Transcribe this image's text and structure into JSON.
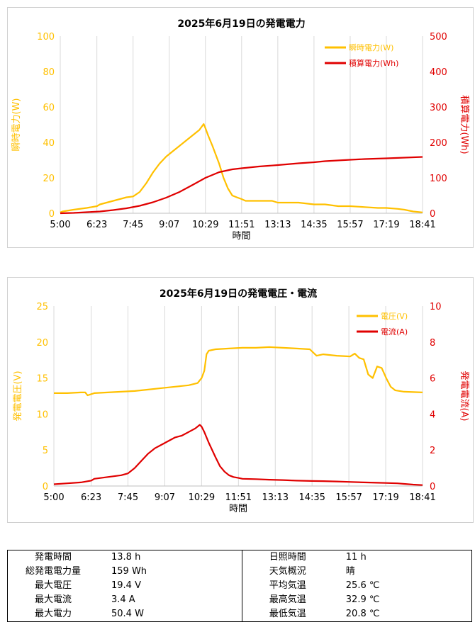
{
  "colors": {
    "yellow": "#FFC000",
    "red": "#E00000",
    "grid": "#d9d9d9"
  },
  "chart_data": [
    {
      "type": "line",
      "title": "2025年6月19日の発電電力",
      "xlabel": "時間",
      "ylabel_left": "瞬時電力(W)",
      "ylabel_right": "積算電力(Wh)",
      "x_ticks": [
        "5:00",
        "6:23",
        "7:45",
        "9:07",
        "10:29",
        "11:51",
        "13:13",
        "14:35",
        "15:57",
        "17:19",
        "18:41"
      ],
      "xlim": [
        "5:00",
        "18:41"
      ],
      "ylim_left": [
        0,
        100
      ],
      "yticks_left": [
        "0",
        "20",
        "40",
        "60",
        "80",
        "100"
      ],
      "ylim_right": [
        0,
        500
      ],
      "yticks_right": [
        "0",
        "100",
        "200",
        "300",
        "400",
        "500"
      ],
      "legend_position": "top-right",
      "grid": "vertical",
      "series": [
        {
          "name": "瞬時電力(W)",
          "axis": "left",
          "color": "#FFC000",
          "x": [
            "5:00",
            "5:05",
            "5:30",
            "6:00",
            "6:23",
            "6:30",
            "7:00",
            "7:30",
            "7:45",
            "8:00",
            "8:15",
            "8:30",
            "8:45",
            "9:00",
            "9:15",
            "9:30",
            "9:45",
            "10:00",
            "10:15",
            "10:25",
            "10:29",
            "10:35",
            "10:45",
            "11:00",
            "11:10",
            "11:20",
            "11:30",
            "11:40",
            "11:51",
            "12:00",
            "12:30",
            "13:00",
            "13:13",
            "13:30",
            "14:00",
            "14:35",
            "15:00",
            "15:30",
            "15:57",
            "16:30",
            "17:00",
            "17:19",
            "17:45",
            "18:00",
            "18:20",
            "18:41"
          ],
          "values": [
            0.5,
            1,
            2,
            3,
            4,
            5,
            7,
            9,
            9.5,
            12,
            17,
            23,
            28,
            32,
            35,
            38,
            41,
            44,
            47,
            50.4,
            48,
            44,
            38,
            28,
            20,
            14,
            10,
            9,
            8,
            7,
            7,
            7,
            6,
            6,
            6,
            5,
            5,
            4,
            4,
            3.5,
            3,
            3,
            2.5,
            2,
            1,
            0.5
          ]
        },
        {
          "name": "積算電力(Wh)",
          "axis": "right",
          "color": "#E00000",
          "x": [
            "5:00",
            "5:30",
            "6:00",
            "6:30",
            "7:00",
            "7:30",
            "8:00",
            "8:30",
            "9:00",
            "9:30",
            "10:00",
            "10:29",
            "11:00",
            "11:30",
            "11:51",
            "12:30",
            "13:13",
            "14:00",
            "14:35",
            "15:00",
            "15:57",
            "16:30",
            "17:19",
            "18:00",
            "18:41"
          ],
          "values": [
            0,
            1,
            3,
            5,
            9,
            14,
            21,
            31,
            44,
            60,
            80,
            100,
            116,
            124,
            127,
            132,
            136,
            141,
            144,
            147,
            151,
            153,
            155,
            157,
            159
          ]
        }
      ]
    },
    {
      "type": "line",
      "title": "2025年6月19日の発電電圧・電流",
      "xlabel": "時間",
      "ylabel_left": "発電電圧(V)",
      "ylabel_right": "発電電流(A)",
      "x_ticks": [
        "5:00",
        "6:23",
        "7:45",
        "9:07",
        "10:29",
        "11:51",
        "13:13",
        "14:35",
        "15:57",
        "17:19",
        "18:41"
      ],
      "xlim": [
        "5:00",
        "18:41"
      ],
      "ylim_left": [
        0,
        25
      ],
      "yticks_left": [
        "0",
        "5",
        "10",
        "15",
        "20",
        "25"
      ],
      "ylim_right": [
        0,
        10
      ],
      "yticks_right": [
        "0",
        "2",
        "4",
        "6",
        "8",
        "10"
      ],
      "legend_position": "top-right",
      "grid": "vertical",
      "series": [
        {
          "name": "電圧(V)",
          "axis": "left",
          "color": "#FFC000",
          "x": [
            "5:00",
            "5:30",
            "6:00",
            "6:10",
            "6:15",
            "6:30",
            "7:00",
            "7:30",
            "8:00",
            "8:30",
            "9:00",
            "9:30",
            "10:00",
            "10:20",
            "10:29",
            "10:35",
            "10:40",
            "10:45",
            "11:00",
            "11:30",
            "12:00",
            "12:30",
            "13:00",
            "13:30",
            "14:00",
            "14:30",
            "14:45",
            "15:00",
            "15:30",
            "16:00",
            "16:10",
            "16:20",
            "16:30",
            "16:40",
            "16:50",
            "17:00",
            "17:10",
            "17:20",
            "17:30",
            "17:40",
            "18:00",
            "18:41"
          ],
          "values": [
            12.9,
            12.9,
            13.0,
            13.0,
            12.6,
            12.9,
            13.0,
            13.1,
            13.2,
            13.4,
            13.6,
            13.8,
            14.0,
            14.3,
            15.0,
            16.0,
            18.3,
            18.8,
            19.0,
            19.1,
            19.2,
            19.2,
            19.3,
            19.2,
            19.1,
            19.0,
            18.1,
            18.3,
            18.1,
            18.0,
            18.4,
            17.8,
            17.6,
            15.5,
            15.0,
            16.6,
            16.4,
            15.0,
            13.8,
            13.3,
            13.1,
            13.0
          ]
        },
        {
          "name": "電流(A)",
          "axis": "right",
          "color": "#E00000",
          "x": [
            "5:00",
            "5:30",
            "6:00",
            "6:23",
            "6:30",
            "7:00",
            "7:30",
            "7:45",
            "8:00",
            "8:15",
            "8:30",
            "8:45",
            "9:00",
            "9:15",
            "9:30",
            "9:45",
            "10:00",
            "10:15",
            "10:25",
            "10:29",
            "10:35",
            "10:45",
            "11:00",
            "11:10",
            "11:20",
            "11:30",
            "11:40",
            "11:51",
            "12:00",
            "12:30",
            "13:00",
            "13:30",
            "14:00",
            "14:35",
            "15:00",
            "15:30",
            "15:57",
            "16:30",
            "17:00",
            "17:19",
            "17:45",
            "18:00",
            "18:20",
            "18:41"
          ],
          "values": [
            0.1,
            0.15,
            0.2,
            0.3,
            0.4,
            0.5,
            0.6,
            0.7,
            1.0,
            1.4,
            1.8,
            2.1,
            2.3,
            2.5,
            2.7,
            2.8,
            3.0,
            3.2,
            3.4,
            3.3,
            3.0,
            2.4,
            1.6,
            1.1,
            0.8,
            0.6,
            0.5,
            0.45,
            0.4,
            0.38,
            0.35,
            0.33,
            0.3,
            0.28,
            0.27,
            0.25,
            0.23,
            0.2,
            0.18,
            0.17,
            0.15,
            0.12,
            0.08,
            0.05
          ]
        }
      ]
    }
  ],
  "summary": {
    "rows": [
      {
        "lk": "発電時間",
        "lv": "13.8  h",
        "rk": "日照時間",
        "rv": "11  h"
      },
      {
        "lk": "総発電電力量",
        "lv": "159  Wh",
        "rk": "天気概況",
        "rv": "晴"
      },
      {
        "lk": "最大電圧",
        "lv": "19.4  V",
        "rk": "平均気温",
        "rv": "25.6  ℃"
      },
      {
        "lk": "最大電流",
        "lv": "3.4  A",
        "rk": "最高気温",
        "rv": "32.9  ℃"
      },
      {
        "lk": "最大電力",
        "lv": "50.4  W",
        "rk": "最低気温",
        "rv": "20.8  ℃"
      }
    ]
  }
}
